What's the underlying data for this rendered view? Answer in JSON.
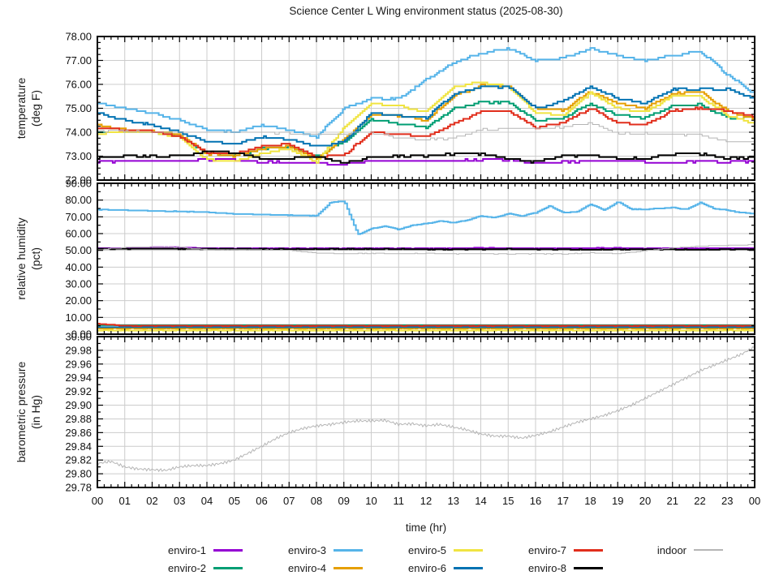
{
  "chart_data": {
    "type": "line",
    "title": "Science Center L Wing environment status (2025-08-30)",
    "x": {
      "label": "time (hr)",
      "min": 0,
      "max": 24,
      "major": 1,
      "minor": 0.25,
      "tick_labels": [
        "00",
        "01",
        "02",
        "03",
        "04",
        "05",
        "06",
        "07",
        "08",
        "09",
        "10",
        "11",
        "12",
        "13",
        "14",
        "15",
        "16",
        "17",
        "18",
        "19",
        "20",
        "21",
        "22",
        "23",
        "00"
      ]
    },
    "panels": [
      {
        "id": "temperature",
        "ylabel": "temperature",
        "ylabel2": "(deg F)",
        "ymin": 72,
        "ymax": 78,
        "major": 1,
        "minor": 0.25
      },
      {
        "id": "humidity",
        "ylabel": "relative humidity",
        "ylabel2": "(pct)",
        "ymin": 0,
        "ymax": 90,
        "major": 10,
        "minor": 5
      },
      {
        "id": "pressure",
        "ylabel": "barometric pressure",
        "ylabel2": "(in Hg)",
        "ymin": 29.78,
        "ymax": 30.0,
        "major": 0.02,
        "minor": 0.01
      }
    ],
    "colors": {
      "grid": "#cccccc",
      "axis": "#000000",
      "text": "#1a1a1a"
    },
    "series": [
      {
        "name": "enviro-1",
        "color": "#9400d3",
        "width": 2,
        "temperature": {
          "step": 1,
          "values": [
            72.75,
            72.8,
            72.8,
            72.8,
            72.85,
            72.85,
            72.75,
            72.75,
            72.7,
            72.65,
            72.8,
            72.8,
            72.8,
            72.8,
            72.85,
            72.85,
            72.7,
            72.75,
            72.8,
            72.8,
            72.75,
            72.7,
            72.8,
            72.75,
            72.8
          ]
        },
        "humidity": {
          "step": 1,
          "values": [
            51.3,
            51.3,
            51.8,
            51.8,
            51.3,
            51.2,
            51.2,
            51.2,
            51.2,
            51.2,
            51.2,
            51.2,
            51.2,
            51.2,
            51.5,
            51.3,
            51.2,
            51.2,
            51.4,
            51.4,
            51.2,
            51.2,
            51.2,
            51.3,
            51.3
          ]
        },
        "pressure": null
      },
      {
        "name": "enviro-2",
        "color": "#009e73",
        "width": 2,
        "temperature": {
          "step": 1,
          "values": [
            74.0,
            74.0,
            74.0,
            73.85,
            73.1,
            73.05,
            73.3,
            73.4,
            73.0,
            73.6,
            74.55,
            74.35,
            74.2,
            75.0,
            75.25,
            75.25,
            74.5,
            74.6,
            75.2,
            74.7,
            74.6,
            75.1,
            75.15,
            74.6,
            74.6
          ]
        },
        "humidity": {
          "step": 1,
          "values": [
            5.4,
            5.4,
            5.4,
            5.4,
            5.4,
            5.4,
            5.4,
            5.4,
            5.4,
            5.4,
            5.4,
            5.4,
            5.4,
            5.4,
            5.4,
            5.4,
            5.4,
            5.4,
            5.4,
            5.4,
            5.4,
            5.4,
            5.4,
            5.4,
            5.4
          ]
        },
        "pressure": null
      },
      {
        "name": "enviro-3",
        "color": "#56b4e9",
        "width": 2,
        "temperature": {
          "step": 1,
          "values": [
            75.2,
            75.0,
            74.8,
            74.5,
            74.1,
            74.0,
            74.3,
            74.1,
            73.8,
            75.0,
            75.4,
            75.4,
            76.2,
            76.9,
            77.3,
            77.5,
            77.0,
            77.1,
            77.5,
            77.2,
            77.0,
            77.2,
            77.4,
            76.4,
            75.6
          ]
        },
        "humidity": {
          "step": 0.5,
          "values": [
            74.3,
            74.2,
            74.0,
            73.8,
            73.6,
            73.4,
            73.2,
            73.0,
            72.8,
            72.3,
            71.8,
            71.6,
            71.4,
            71.2,
            71.0,
            70.8,
            70.6,
            78.5,
            79.5,
            59.5,
            63.0,
            64.5,
            62.5,
            65.0,
            66.0,
            67.5,
            66.5,
            68.0,
            70.5,
            69.5,
            72.0,
            70.5,
            72.5,
            76.5,
            72.5,
            73.0,
            77.5,
            74.0,
            79.0,
            74.5,
            74.5,
            75.0,
            75.5,
            74.5,
            78.5,
            75.0,
            74.0,
            72.5,
            72.0
          ]
        },
        "pressure": null
      },
      {
        "name": "enviro-4",
        "color": "#e69f00",
        "width": 2,
        "temperature": {
          "step": 1,
          "values": [
            74.3,
            74.1,
            74.05,
            73.9,
            73.1,
            73.0,
            73.3,
            73.4,
            72.9,
            73.7,
            74.7,
            74.7,
            74.5,
            75.5,
            75.95,
            75.9,
            75.0,
            74.9,
            75.7,
            75.2,
            75.0,
            75.6,
            75.7,
            74.9,
            74.55
          ]
        },
        "humidity": {
          "step": 1,
          "values": [
            3.4,
            3.4,
            3.4,
            3.4,
            3.4,
            3.4,
            3.4,
            3.4,
            3.4,
            3.4,
            3.4,
            3.4,
            3.4,
            3.4,
            3.4,
            3.4,
            3.4,
            3.4,
            3.4,
            3.4,
            3.4,
            3.4,
            3.4,
            3.4,
            3.4
          ]
        },
        "pressure": null
      },
      {
        "name": "enviro-5",
        "color": "#f0e442",
        "width": 2,
        "temperature": {
          "step": 1,
          "values": [
            73.95,
            74.0,
            74.0,
            73.8,
            72.85,
            72.8,
            73.1,
            73.3,
            72.75,
            74.2,
            75.2,
            75.1,
            74.85,
            75.9,
            76.1,
            75.9,
            74.8,
            74.7,
            75.65,
            75.0,
            74.85,
            75.5,
            75.5,
            74.7,
            74.35
          ]
        },
        "humidity": {
          "step": 1,
          "values": [
            2.2,
            2.2,
            2.2,
            2.2,
            2.2,
            2.2,
            2.2,
            2.2,
            2.2,
            2.2,
            2.2,
            2.2,
            2.2,
            2.2,
            2.2,
            2.2,
            2.2,
            2.2,
            2.2,
            2.2,
            2.2,
            2.2,
            2.2,
            2.2,
            2.2
          ]
        },
        "pressure": null
      },
      {
        "name": "enviro-6",
        "color": "#0072b2",
        "width": 2,
        "temperature": {
          "step": 1,
          "values": [
            74.8,
            74.5,
            74.3,
            74.0,
            73.6,
            73.5,
            73.8,
            73.7,
            73.4,
            73.6,
            74.8,
            74.7,
            74.6,
            75.6,
            75.9,
            75.9,
            75.0,
            75.3,
            75.9,
            75.4,
            75.2,
            75.8,
            75.8,
            75.8,
            75.4
          ]
        },
        "humidity": {
          "step": 1,
          "values": [
            4.2,
            4.2,
            4.2,
            4.2,
            4.2,
            4.2,
            4.2,
            4.2,
            4.2,
            4.2,
            4.2,
            4.2,
            4.2,
            4.2,
            4.2,
            4.2,
            4.2,
            4.2,
            4.2,
            4.2,
            4.2,
            4.2,
            4.2,
            4.2,
            4.2
          ]
        },
        "pressure": null
      },
      {
        "name": "enviro-7",
        "color": "#e12e1c",
        "width": 2,
        "temperature": {
          "step": 1,
          "values": [
            74.2,
            74.1,
            74.05,
            73.8,
            73.15,
            73.1,
            73.4,
            73.5,
            72.95,
            73.05,
            74.0,
            73.9,
            73.8,
            74.35,
            74.85,
            74.9,
            74.2,
            74.4,
            75.0,
            74.4,
            74.3,
            74.9,
            75.0,
            74.9,
            74.65
          ]
        },
        "humidity": {
          "step": 1,
          "values": [
            6.2,
            5.0,
            5.0,
            5.0,
            5.0,
            5.0,
            5.0,
            5.0,
            5.0,
            5.0,
            5.0,
            5.0,
            5.0,
            5.0,
            5.0,
            5.0,
            5.0,
            5.0,
            5.0,
            5.0,
            5.0,
            5.0,
            5.0,
            5.0,
            5.0
          ]
        },
        "pressure": null
      },
      {
        "name": "enviro-8",
        "color": "#000000",
        "width": 2,
        "temperature": {
          "step": 1,
          "values": [
            72.9,
            73.0,
            73.0,
            73.0,
            73.2,
            73.15,
            72.9,
            72.9,
            73.0,
            72.7,
            72.95,
            73.0,
            73.0,
            73.1,
            73.1,
            72.9,
            72.75,
            73.0,
            73.05,
            72.9,
            72.9,
            73.1,
            73.1,
            72.9,
            72.95
          ]
        },
        "humidity": {
          "step": 1,
          "values": [
            50.9,
            50.9,
            51.0,
            50.9,
            50.9,
            50.9,
            50.8,
            50.8,
            50.8,
            50.8,
            50.8,
            50.8,
            50.6,
            50.6,
            50.6,
            50.8,
            50.6,
            50.6,
            50.4,
            50.6,
            50.6,
            50.6,
            50.4,
            50.6,
            50.6
          ]
        },
        "pressure": null
      },
      {
        "name": "indoor",
        "color": "#b5b5b5",
        "width": 1,
        "temperature": {
          "step": 1,
          "values": [
            74.05,
            74.05,
            74.0,
            74.0,
            74.0,
            74.0,
            74.0,
            73.95,
            73.9,
            73.95,
            74.0,
            73.75,
            73.7,
            73.75,
            74.1,
            74.15,
            74.15,
            74.2,
            74.4,
            73.95,
            73.95,
            73.9,
            73.9,
            73.6,
            73.55
          ]
        },
        "humidity": {
          "step": 1,
          "values": [
            50.4,
            51.8,
            52.0,
            51.8,
            50.4,
            50.3,
            50.3,
            50.0,
            48.4,
            48.0,
            48.2,
            48.0,
            48.2,
            47.9,
            48.0,
            47.8,
            48.0,
            47.8,
            48.4,
            48.0,
            49.8,
            51.5,
            52.5,
            53.0,
            53.3
          ]
        },
        "pressure": {
          "step": 0.5,
          "values": [
            29.815,
            29.818,
            29.81,
            29.807,
            29.806,
            29.805,
            29.81,
            29.812,
            29.812,
            29.815,
            29.82,
            29.83,
            29.84,
            29.851,
            29.86,
            29.866,
            29.87,
            29.872,
            29.875,
            29.877,
            29.877,
            29.878,
            29.872,
            29.873,
            29.87,
            29.872,
            29.868,
            29.864,
            29.858,
            29.855,
            29.855,
            29.852,
            29.856,
            29.861,
            29.868,
            29.875,
            29.88,
            29.885,
            29.892,
            29.9,
            29.91,
            29.92,
            29.93,
            29.94,
            29.95,
            29.958,
            29.966,
            29.974,
            29.985
          ]
        }
      }
    ],
    "legend": {
      "rows": [
        [
          "enviro-1",
          "enviro-3",
          "enviro-5",
          "enviro-7",
          "indoor"
        ],
        [
          "enviro-2",
          "enviro-4",
          "enviro-6",
          "enviro-8"
        ]
      ]
    }
  }
}
